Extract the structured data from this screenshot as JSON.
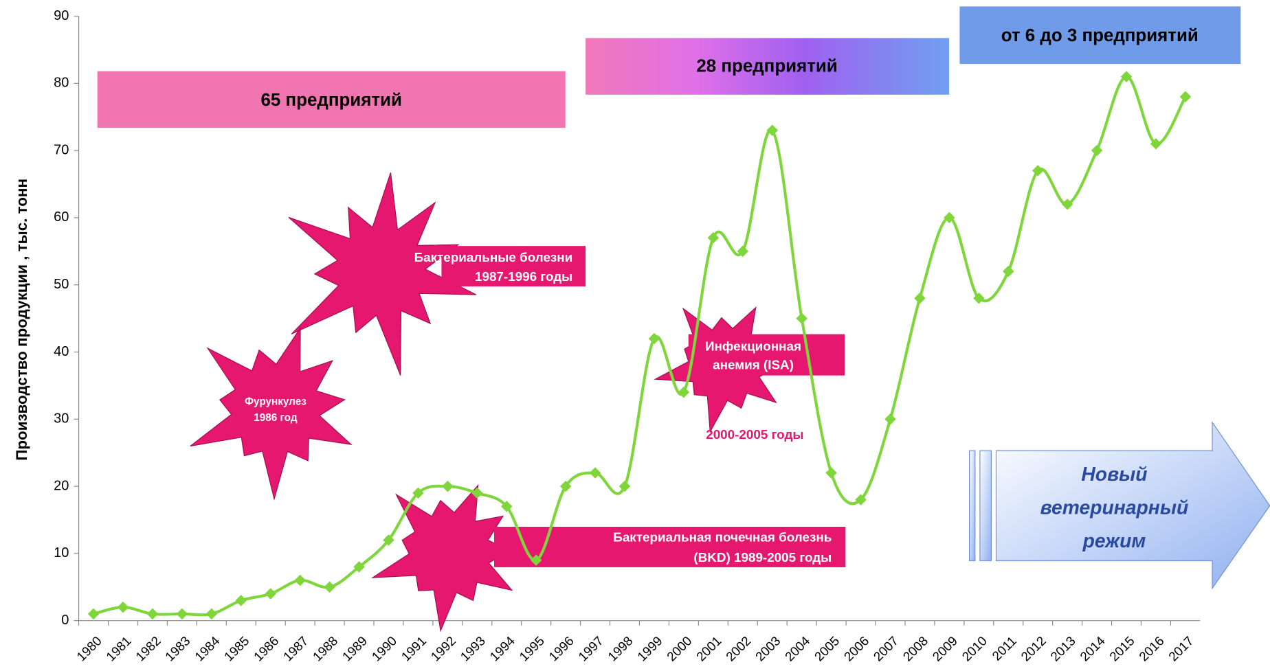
{
  "chart_data": {
    "type": "line",
    "y_label": "Производство продукции , тыс. тонн",
    "categories": [
      "1980",
      "1981",
      "1982",
      "1983",
      "1984",
      "1985",
      "1986",
      "1987",
      "1988",
      "1989",
      "1990",
      "1991",
      "1992",
      "1993",
      "1994",
      "1995",
      "1996",
      "1997",
      "1998",
      "1999",
      "2000",
      "2001",
      "2002",
      "2003",
      "2004",
      "2005",
      "2006",
      "2007",
      "2008",
      "2009",
      "2010",
      "2011",
      "2012",
      "2013",
      "2014",
      "2015",
      "2016",
      "2017"
    ],
    "series": [
      {
        "color": "#7ed63a",
        "values": [
          1,
          2,
          1,
          1,
          1,
          3,
          4,
          6,
          5,
          8,
          12,
          19,
          20,
          19,
          17,
          9,
          20,
          22,
          20,
          42,
          34,
          57,
          55,
          73,
          45,
          22,
          18,
          30,
          48,
          60,
          48,
          52,
          67,
          62,
          70,
          81,
          71,
          78
        ]
      }
    ],
    "ylim": [
      0,
      90
    ],
    "yticks": [
      0,
      10,
      20,
      30,
      40,
      50,
      60,
      70,
      80,
      90
    ],
    "annotations": [
      {
        "lines": [
          "65 предприятий"
        ]
      },
      {
        "lines": [
          "28 предприятий"
        ]
      },
      {
        "lines": [
          "от 6 до 3 предприятий"
        ]
      },
      {
        "lines": [
          "Бактериальные болезни",
          "1987-1996 годы"
        ]
      },
      {
        "lines": [
          "Фурункулез",
          "1986 год"
        ]
      },
      {
        "lines": [
          "Инфекционная",
          "анемия (ISA)"
        ]
      },
      {
        "lines": [
          "2000-2005 годы"
        ]
      },
      {
        "lines": [
          "Бактериальная почечная болезнь",
          "(BKD) 1989-2005 годы"
        ]
      },
      {
        "lines": [
          "Новый",
          "ветеринарный",
          "режим"
        ]
      }
    ]
  }
}
